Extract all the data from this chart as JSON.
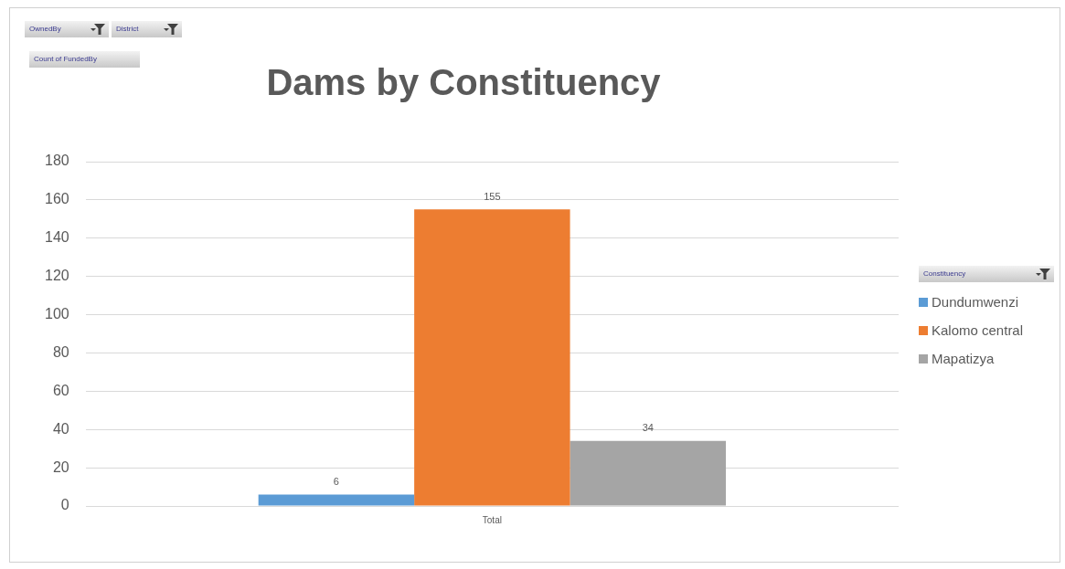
{
  "chart_data": {
    "type": "bar",
    "title": "Dams by Constituency",
    "categories": [
      "Total"
    ],
    "series": [
      {
        "name": "Dundumwenzi",
        "color": "#5b9bd5",
        "values": [
          6
        ]
      },
      {
        "name": "Kalomo central",
        "color": "#ed7d31",
        "values": [
          155
        ]
      },
      {
        "name": "Mapatizya",
        "color": "#a5a5a5",
        "values": [
          34
        ]
      }
    ],
    "ylim": [
      0,
      180
    ],
    "yticks": [
      0,
      20,
      40,
      60,
      80,
      100,
      120,
      140,
      160,
      180
    ],
    "grid": "y",
    "legend": "right",
    "legend_title": "Constituency",
    "data_labels": true,
    "annotations": [
      "OwnedBy",
      "District",
      "Count of FundedBy"
    ]
  }
}
